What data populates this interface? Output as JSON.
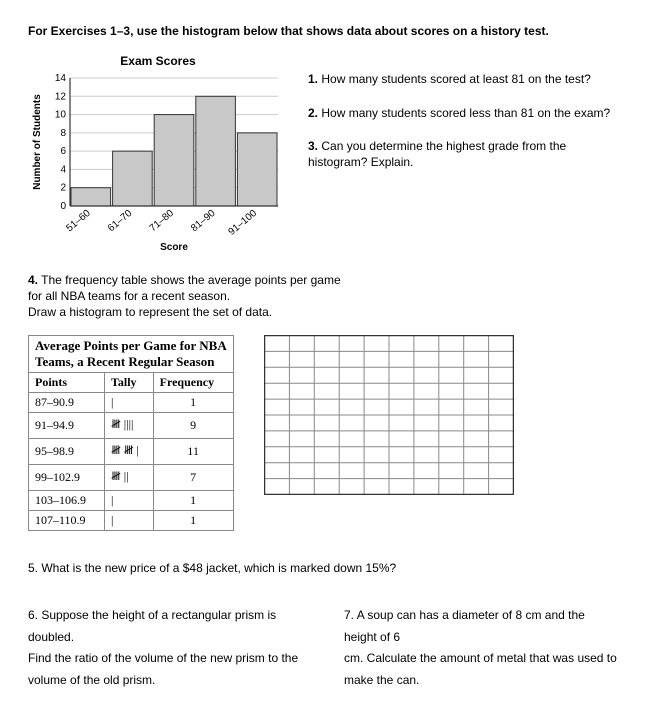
{
  "header": "For Exercises 1–3, use the histogram below that shows data about scores on a history test.",
  "chart": {
    "title": "Exam Scores",
    "ylabel": "Number of Students",
    "xlabel": "Score",
    "categories": [
      "51–60",
      "61–70",
      "71–80",
      "81–90",
      "91–100"
    ],
    "values": [
      2,
      6,
      10,
      12,
      8
    ],
    "yticks": [
      0,
      2,
      4,
      6,
      8,
      10,
      12,
      14
    ],
    "ylim": [
      0,
      14
    ],
    "bar_color": "#c8c8c8",
    "bar_border": "#333333",
    "axis_color": "#333333",
    "grid_color": "#cccccc",
    "tick_fontsize": 10
  },
  "questions": {
    "q1": "How many students scored at least 81 on the test?",
    "q2": "How many students scored less than 81 on the exam?",
    "q3": "Can you determine the highest grade from the histogram? Explain."
  },
  "section4": {
    "l1": "The frequency table shows the average points per game",
    "l2": "for all NBA teams for a recent season.",
    "l3": "Draw a histogram to represent the set of data."
  },
  "freq_table": {
    "title_l1": "Average Points per Game for NBA",
    "title_l2": "Teams, a Recent Regular Season",
    "columns": [
      "Points",
      "Tally",
      "Frequency"
    ],
    "rows": [
      [
        "87–90.9",
        "|",
        "1"
      ],
      [
        "91–94.9",
        "𝍸 ||||",
        "9"
      ],
      [
        "95–98.9",
        "𝍸 𝍸 |",
        "11"
      ],
      [
        "99–102.9",
        "𝍸 ||",
        "7"
      ],
      [
        "103–106.9",
        "|",
        "1"
      ],
      [
        "107–110.9",
        "|",
        "1"
      ]
    ]
  },
  "blank_grid": {
    "cols": 10,
    "rows": 10,
    "border_color": "#333333",
    "line_color": "#888888"
  },
  "q5": "What is the new price of a $48 jacket, which is marked down 15%?",
  "q6": {
    "l1": "Suppose the height of a rectangular prism is doubled.",
    "l2": "Find the ratio of the volume of the new prism to the",
    "l3": "volume of the old prism."
  },
  "q7": {
    "l1": "A soup can has a diameter of 8 cm and the height of 6",
    "l2": "cm. Calculate the amount of metal that was used to",
    "l3": "make the can."
  }
}
